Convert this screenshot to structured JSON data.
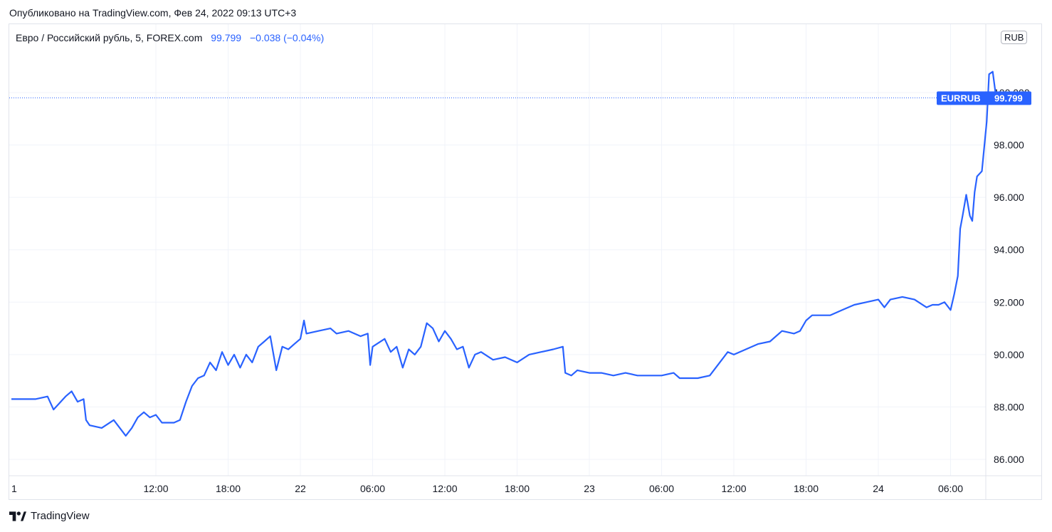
{
  "header": {
    "published": "Опубликовано на TradingView.com, Фев 24, 2022 09:13 UTC+3"
  },
  "legend": {
    "symbol": "Евро / Российский рубль, 5, FOREX.com",
    "last": "99.799",
    "change": "−0.038 (−0.04%)"
  },
  "currency_badge": "RUB",
  "price_label": {
    "ticker": "EURRUB",
    "value": "99.799"
  },
  "footer": {
    "brand": "TradingView"
  },
  "colors": {
    "line": "#2962ff",
    "grid": "#f0f3fa",
    "badge": "#2962ff"
  },
  "chart_data": {
    "type": "line",
    "title": "Евро / Российский рубль, 5, FOREX.com",
    "ylim": [
      85.0,
      102.0
    ],
    "y_ticks": [
      "86.000",
      "88.000",
      "90.000",
      "92.000",
      "94.000",
      "96.000",
      "98.000",
      "100.000"
    ],
    "x_ticks": [
      {
        "label": "1",
        "t": 0
      },
      {
        "label": "12:00",
        "t": 12
      },
      {
        "label": "18:00",
        "t": 18
      },
      {
        "label": "22",
        "t": 24
      },
      {
        "label": "06:00",
        "t": 30
      },
      {
        "label": "12:00",
        "t": 36
      },
      {
        "label": "18:00",
        "t": 42
      },
      {
        "label": "23",
        "t": 48
      },
      {
        "label": "06:00",
        "t": 54
      },
      {
        "label": "12:00",
        "t": 60
      },
      {
        "label": "18:00",
        "t": 66
      },
      {
        "label": "24",
        "t": 72
      },
      {
        "label": "06:00",
        "t": 78
      }
    ],
    "x_unit": "hours from Feb 21 00:00",
    "grid": true,
    "series": [
      {
        "name": "EURRUB",
        "points": [
          [
            0.0,
            88.3
          ],
          [
            1.0,
            88.3
          ],
          [
            2.0,
            88.3
          ],
          [
            3.0,
            88.4
          ],
          [
            3.5,
            87.9
          ],
          [
            4.5,
            88.4
          ],
          [
            5.0,
            88.6
          ],
          [
            5.5,
            88.2
          ],
          [
            6.0,
            88.3
          ],
          [
            6.2,
            87.5
          ],
          [
            6.5,
            87.3
          ],
          [
            7.5,
            87.2
          ],
          [
            8.5,
            87.5
          ],
          [
            9.0,
            87.2
          ],
          [
            9.5,
            86.9
          ],
          [
            10.0,
            87.2
          ],
          [
            10.5,
            87.6
          ],
          [
            11.0,
            87.8
          ],
          [
            11.5,
            87.6
          ],
          [
            12.0,
            87.7
          ],
          [
            12.5,
            87.4
          ],
          [
            13.5,
            87.4
          ],
          [
            14.0,
            87.5
          ],
          [
            14.5,
            88.2
          ],
          [
            15.0,
            88.8
          ],
          [
            15.5,
            89.1
          ],
          [
            16.0,
            89.2
          ],
          [
            16.5,
            89.7
          ],
          [
            17.0,
            89.4
          ],
          [
            17.5,
            90.1
          ],
          [
            18.0,
            89.6
          ],
          [
            18.5,
            90.0
          ],
          [
            19.0,
            89.5
          ],
          [
            19.5,
            90.0
          ],
          [
            20.0,
            89.7
          ],
          [
            20.5,
            90.3
          ],
          [
            21.0,
            90.5
          ],
          [
            21.5,
            90.7
          ],
          [
            22.0,
            89.4
          ],
          [
            22.5,
            90.3
          ],
          [
            23.0,
            90.2
          ],
          [
            23.5,
            90.4
          ],
          [
            24.0,
            90.6
          ],
          [
            24.3,
            91.3
          ],
          [
            24.5,
            90.8
          ],
          [
            25.5,
            90.9
          ],
          [
            26.5,
            91.0
          ],
          [
            27.0,
            90.8
          ],
          [
            28.0,
            90.9
          ],
          [
            29.0,
            90.7
          ],
          [
            29.6,
            90.8
          ],
          [
            29.8,
            89.6
          ],
          [
            30.0,
            90.3
          ],
          [
            31.0,
            90.6
          ],
          [
            31.5,
            90.1
          ],
          [
            32.0,
            90.3
          ],
          [
            32.5,
            89.5
          ],
          [
            33.0,
            90.2
          ],
          [
            33.5,
            90.0
          ],
          [
            34.0,
            90.3
          ],
          [
            34.5,
            91.2
          ],
          [
            35.0,
            91.0
          ],
          [
            35.5,
            90.5
          ],
          [
            36.0,
            90.9
          ],
          [
            36.5,
            90.6
          ],
          [
            37.0,
            90.2
          ],
          [
            37.5,
            90.3
          ],
          [
            38.0,
            89.5
          ],
          [
            38.5,
            90.0
          ],
          [
            39.0,
            90.1
          ],
          [
            40.0,
            89.8
          ],
          [
            41.0,
            89.9
          ],
          [
            42.0,
            89.7
          ],
          [
            43.0,
            90.0
          ],
          [
            44.0,
            90.1
          ],
          [
            45.0,
            90.2
          ],
          [
            45.8,
            90.3
          ],
          [
            46.0,
            89.3
          ],
          [
            46.5,
            89.2
          ],
          [
            47.0,
            89.4
          ],
          [
            48.0,
            89.3
          ],
          [
            49.0,
            89.3
          ],
          [
            50.0,
            89.2
          ],
          [
            51.0,
            89.3
          ],
          [
            52.0,
            89.2
          ],
          [
            53.0,
            89.2
          ],
          [
            54.0,
            89.2
          ],
          [
            55.0,
            89.3
          ],
          [
            55.5,
            89.1
          ],
          [
            56.0,
            89.1
          ],
          [
            57.0,
            89.1
          ],
          [
            58.0,
            89.2
          ],
          [
            58.5,
            89.5
          ],
          [
            59.0,
            89.8
          ],
          [
            59.5,
            90.1
          ],
          [
            60.0,
            90.0
          ],
          [
            61.0,
            90.2
          ],
          [
            62.0,
            90.4
          ],
          [
            63.0,
            90.5
          ],
          [
            64.0,
            90.9
          ],
          [
            65.0,
            90.8
          ],
          [
            65.5,
            90.9
          ],
          [
            66.0,
            91.3
          ],
          [
            66.5,
            91.5
          ],
          [
            67.0,
            91.5
          ],
          [
            68.0,
            91.5
          ],
          [
            69.0,
            91.7
          ],
          [
            70.0,
            91.9
          ],
          [
            71.0,
            92.0
          ],
          [
            72.0,
            92.1
          ],
          [
            72.5,
            91.8
          ],
          [
            73.0,
            92.1
          ],
          [
            74.0,
            92.2
          ],
          [
            75.0,
            92.1
          ],
          [
            76.0,
            91.8
          ],
          [
            76.5,
            91.9
          ],
          [
            77.0,
            91.9
          ],
          [
            77.5,
            92.0
          ],
          [
            78.0,
            91.7
          ],
          [
            78.3,
            92.3
          ],
          [
            78.6,
            93.0
          ],
          [
            78.8,
            94.8
          ],
          [
            79.0,
            95.3
          ],
          [
            79.3,
            96.1
          ],
          [
            79.6,
            95.3
          ],
          [
            79.8,
            95.1
          ],
          [
            80.0,
            96.2
          ],
          [
            80.2,
            96.8
          ],
          [
            80.6,
            97.0
          ],
          [
            81.0,
            98.9
          ],
          [
            81.2,
            100.7
          ],
          [
            81.5,
            100.8
          ],
          [
            81.7,
            100.1
          ],
          [
            81.8,
            99.8
          ]
        ]
      }
    ],
    "last_value": 99.799,
    "x_max": 86.0
  }
}
